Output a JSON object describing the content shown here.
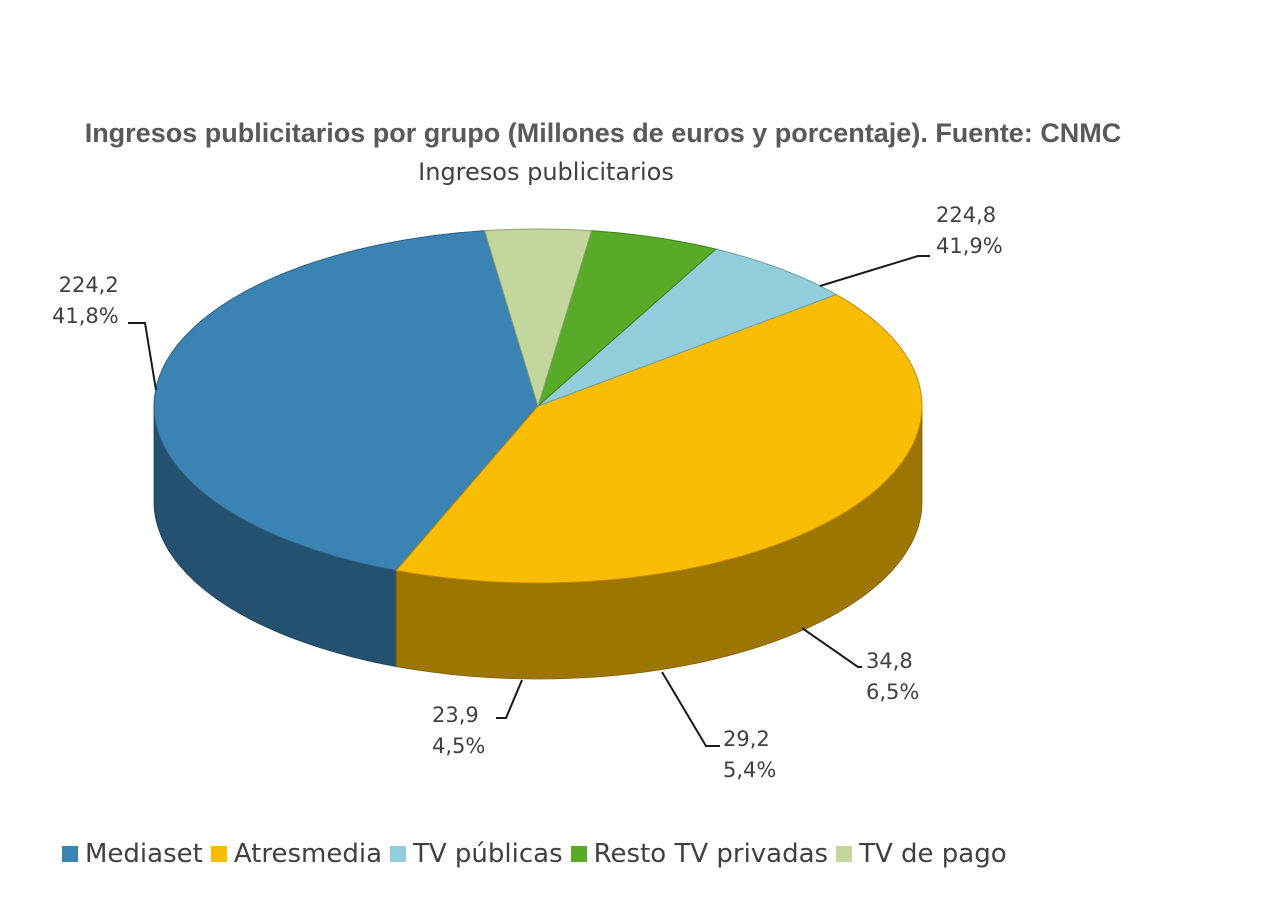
{
  "header": {
    "title": "Ingresos publicitarios por grupo (Millones de euros y porcentaje). Fuente: CNMC"
  },
  "chart_data": {
    "type": "pie",
    "title": "Ingresos publicitarios",
    "three_d": true,
    "legend_position": "bottom",
    "slices": [
      {
        "name": "Mediaset",
        "value": 224.2,
        "value_label": "224,2",
        "percent": 41.8,
        "percent_label": "41,8%",
        "color": "#3a83b3"
      },
      {
        "name": "Atresmedia",
        "value": 224.8,
        "value_label": "224,8",
        "percent": 41.9,
        "percent_label": "41,9%",
        "color": "#fbbc04"
      },
      {
        "name": "TV públicas",
        "value": 34.8,
        "value_label": "34,8",
        "percent": 6.5,
        "percent_label": "6,5%",
        "color": "#92cddc"
      },
      {
        "name": "Resto TV privadas",
        "value": 29.2,
        "value_label": "29,2",
        "percent": 5.4,
        "percent_label": "5,4%",
        "color": "#57ab27"
      },
      {
        "name": "TV de pago",
        "value": 23.9,
        "value_label": "23,9",
        "percent": 4.5,
        "percent_label": "4,5%",
        "color": "#c3d69b"
      }
    ]
  }
}
